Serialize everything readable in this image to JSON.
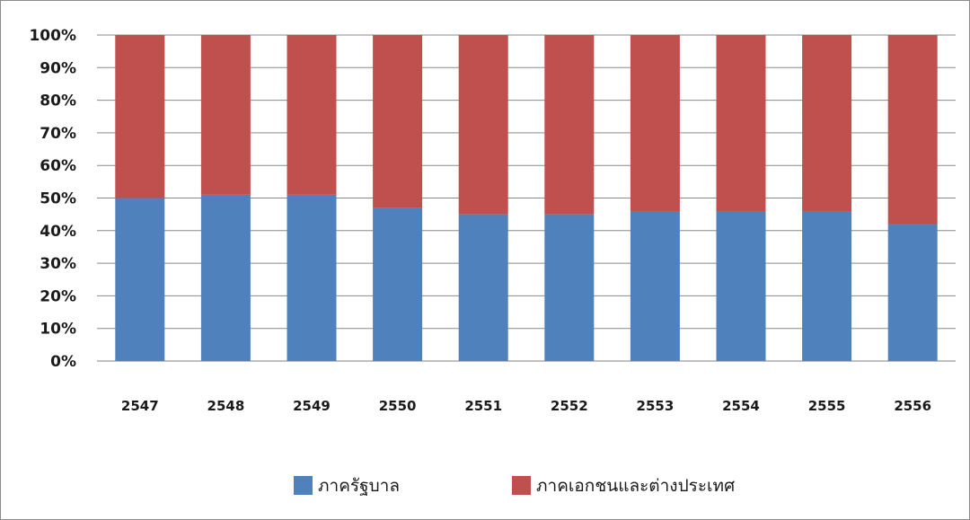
{
  "chart_data": {
    "type": "bar",
    "stacked": "percent",
    "categories": [
      "2547",
      "2548",
      "2549",
      "2550",
      "2551",
      "2552",
      "2553",
      "2554",
      "2555",
      "2556"
    ],
    "series": [
      {
        "name": "ภาครัฐบาล",
        "color": "#4f81bd",
        "values": [
          50,
          51,
          51,
          47,
          45,
          45,
          46,
          46,
          46,
          42
        ]
      },
      {
        "name": "ภาคเอกชนและต่างประเทศ",
        "color": "#c0504d",
        "values": [
          50,
          49,
          49,
          53,
          55,
          55,
          54,
          54,
          54,
          58
        ]
      }
    ],
    "ylim": [
      0,
      100
    ],
    "yticks": [
      "0%",
      "10%",
      "20%",
      "30%",
      "40%",
      "50%",
      "60%",
      "70%",
      "80%",
      "90%",
      "100%"
    ],
    "grid": true,
    "legend": "bottom"
  }
}
